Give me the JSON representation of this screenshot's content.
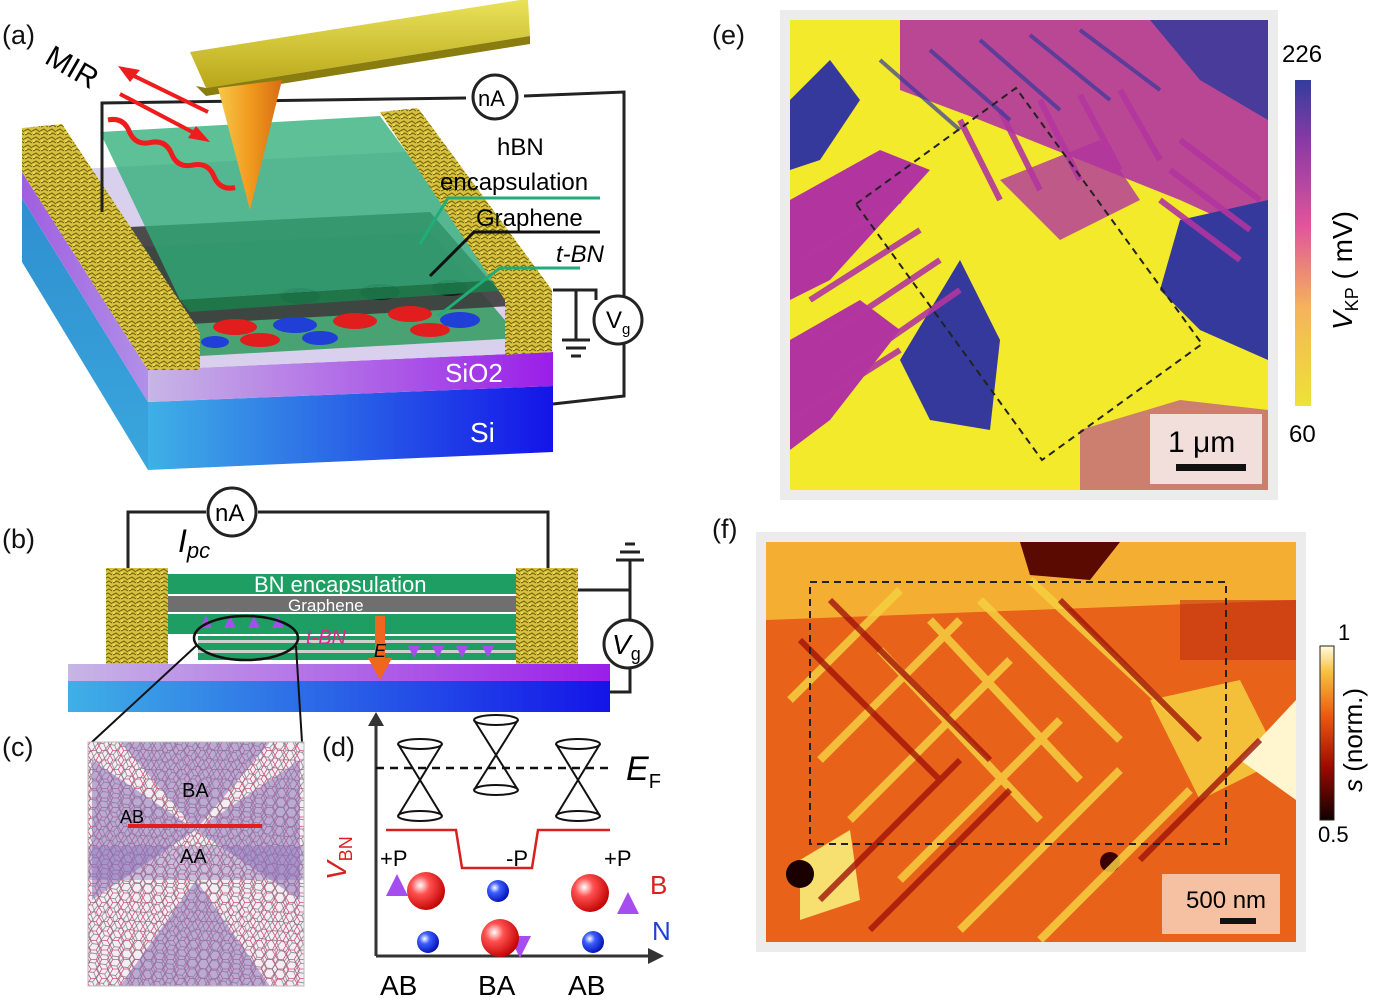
{
  "panels": {
    "a": {
      "tag": "(a)",
      "mir": "MIR",
      "ammeter": "nA",
      "hbn_line1": "hBN",
      "hbn_line2": "encapsulation",
      "graphene": "Graphene",
      "tbn": "t-BN",
      "vg_main": "V",
      "vg_sub": "g",
      "sio2": "SiO2",
      "si": "Si"
    },
    "b": {
      "tag": "(b)",
      "ammeter": "nA",
      "ipc_main": "I",
      "ipc_sub": "pc",
      "bn_encap": "BN encapsulation",
      "graphene": "Graphene",
      "tbn": "t-BN",
      "efield": "E",
      "vg_main": "V",
      "vg_sub": "g"
    },
    "c": {
      "tag": "(c)",
      "ba": "BA",
      "ab": "AB",
      "aa": "AA"
    },
    "d": {
      "tag": "(d)",
      "ef_main": "E",
      "ef_sub": "F",
      "vbn_main": "V",
      "vbn_sub": "BN",
      "pol_left": "+P",
      "pol_mid": "-P",
      "pol_right": "+P",
      "boron": "B",
      "nitrogen": "N",
      "x_labels": [
        "AB",
        "BA",
        "AB"
      ]
    },
    "e": {
      "tag": "(e)",
      "cbar_max": "226",
      "cbar_min": "60",
      "cbar_label_main": "V",
      "cbar_label_sub": "KP",
      "cbar_label_unit": " ( mV)",
      "scalebar": "1 μm"
    },
    "f": {
      "tag": "(f)",
      "cbar_max": "1",
      "cbar_min": "0.5",
      "cbar_label_main": "s",
      "cbar_label_unit": " (norm.)",
      "scalebar": "500 nm"
    }
  },
  "colors": {
    "gold": "#d9c23a",
    "hbn_green": "#1f9e63",
    "graphene_gray": "#6f6f6f",
    "boron_red": "#e21d1d",
    "nitrogen_blue": "#1f3fd6",
    "polarization_purple": "#b050f0",
    "kpfm_yellow": "#f2ea2a",
    "kpfm_purple": "#b2359f",
    "kpfm_blue": "#34399b"
  }
}
